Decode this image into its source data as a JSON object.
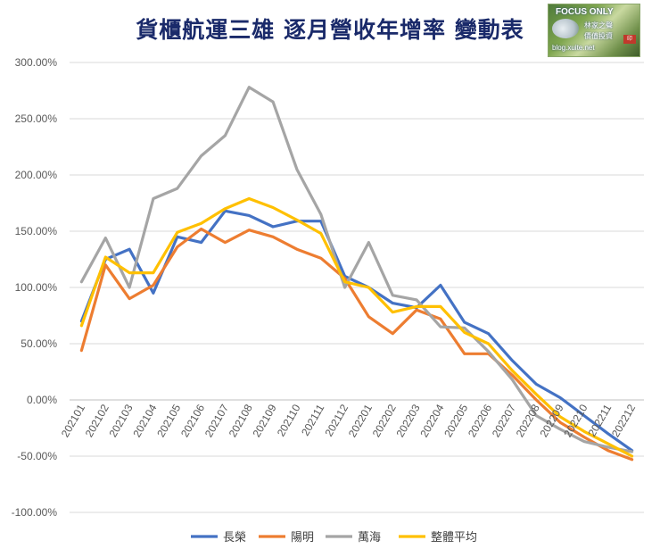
{
  "chart_data": {
    "type": "line",
    "title": "貨櫃航運三雄 逐月營收年增率 變動表",
    "xlabel": "",
    "ylabel": "",
    "ylim": [
      -100,
      300
    ],
    "ytick_step": 50,
    "ytick_labels": [
      "300.00%",
      "250.00%",
      "200.00%",
      "150.00%",
      "100.00%",
      "50.00%",
      "0.00%",
      "-50.00%",
      "-100.00%"
    ],
    "grid": true,
    "legend_position": "bottom",
    "categories": [
      "202101",
      "202102",
      "202103",
      "202104",
      "202105",
      "202106",
      "202107",
      "202108",
      "202109",
      "202110",
      "202111",
      "202112",
      "202201",
      "202202",
      "202203",
      "202204",
      "202205",
      "202206",
      "202207",
      "202208",
      "202209",
      "202210",
      "202211",
      "202212"
    ],
    "series": [
      {
        "name": "長榮",
        "color": "#4472c4",
        "values": [
          70,
          125,
          134,
          95,
          145,
          140,
          168,
          164,
          154,
          159,
          159,
          110,
          100,
          86,
          82,
          102,
          69,
          59,
          35,
          14,
          2,
          -14,
          -30,
          -45
        ]
      },
      {
        "name": "陽明",
        "color": "#ed7d31",
        "values": [
          44,
          120,
          90,
          102,
          136,
          152,
          140,
          151,
          145,
          134,
          126,
          108,
          74,
          59,
          80,
          72,
          41,
          41,
          22,
          0,
          -20,
          -33,
          -45,
          -53
        ]
      },
      {
        "name": "萬海",
        "color": "#a5a5a5",
        "values": [
          105,
          144,
          100,
          179,
          188,
          217,
          235,
          278,
          265,
          205,
          165,
          100,
          140,
          93,
          89,
          65,
          64,
          43,
          18,
          -14,
          -26,
          -37,
          -42,
          -46
        ]
      },
      {
        "name": "整體平均",
        "color": "#ffc000",
        "values": [
          66,
          127,
          113,
          113,
          149,
          157,
          170,
          179,
          171,
          160,
          148,
          105,
          100,
          78,
          83,
          83,
          60,
          50,
          26,
          5,
          -15,
          -28,
          -39,
          -50
        ]
      }
    ]
  },
  "logo": {
    "line1": "FOCUS ONLY",
    "line2": "林家之聲",
    "line3": "價值投資",
    "line4": "blog.xuite.net",
    "seal": "印"
  }
}
